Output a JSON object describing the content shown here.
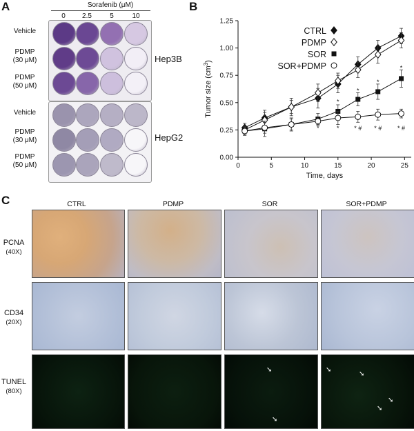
{
  "panelA": {
    "letter": "A",
    "drug_label": "Sorafenib (μM)",
    "doses": [
      "0",
      "2.5",
      "5",
      "10"
    ],
    "hep3b": {
      "cell_line": "Hep3B",
      "rows": [
        {
          "line1": "Vehicle",
          "line2": ""
        },
        {
          "line1": "PDMP",
          "line2": "(30 μM)"
        },
        {
          "line1": "PDMP",
          "line2": "(50 μM)"
        }
      ],
      "well_colors": [
        [
          "#5c3a86",
          "#6a4793",
          "#9370b2",
          "#d6c8e2"
        ],
        [
          "#603c88",
          "#6d4a95",
          "#d0c2df",
          "#f2eef6"
        ],
        [
          "#6c4994",
          "#8766aa",
          "#cdbfdd",
          "#f3f0f7"
        ]
      ]
    },
    "hepg2": {
      "cell_line": "HepG2",
      "rows": [
        {
          "line1": "Vehicle",
          "line2": ""
        },
        {
          "line1": "PDMP",
          "line2": "(30 μM)"
        },
        {
          "line1": "PDMP",
          "line2": "(50 μM)"
        }
      ],
      "well_colors": [
        [
          "#9a93ad",
          "#aca6bd",
          "#b5afc4",
          "#bcb7c9"
        ],
        [
          "#8f88a4",
          "#a49eb7",
          "#b0aac2",
          "#f7f6f9"
        ],
        [
          "#9c96b0",
          "#aaa4bb",
          "#bfbacb",
          "#f7f6f9"
        ]
      ]
    }
  },
  "panelB": {
    "letter": "B",
    "chart_data": {
      "type": "line",
      "xlabel": "Time, days",
      "ylabel": "Tumor size (cm",
      "ylabel_sup": "3",
      "ylabel_close": ")",
      "xlim": [
        0,
        26
      ],
      "ylim": [
        0,
        1.25
      ],
      "xticks": [
        0,
        5,
        10,
        15,
        20,
        25
      ],
      "yticks": [
        0.0,
        0.25,
        0.5,
        0.75,
        1.0,
        1.25
      ],
      "ytick_labels": [
        "0.00",
        "0.25",
        "0.50",
        "0.75",
        "1.00",
        "1.25"
      ],
      "x": [
        1,
        4,
        8,
        12,
        15,
        18,
        21,
        24.5
      ],
      "series": [
        {
          "name": "CTRL",
          "marker": "diamond-filled",
          "values": [
            0.27,
            0.36,
            0.46,
            0.54,
            0.67,
            0.85,
            1.0,
            1.11
          ],
          "errors": [
            0.04,
            0.07,
            0.08,
            0.09,
            0.08,
            0.07,
            0.07,
            0.07
          ]
        },
        {
          "name": "PDMP",
          "marker": "diamond-open",
          "values": [
            0.25,
            0.34,
            0.46,
            0.59,
            0.7,
            0.8,
            0.94,
            1.07
          ],
          "errors": [
            0.04,
            0.07,
            0.06,
            0.08,
            0.07,
            0.07,
            0.08,
            0.07
          ]
        },
        {
          "name": "SOR",
          "marker": "square-filled",
          "values": [
            0.24,
            0.26,
            0.3,
            0.35,
            0.42,
            0.53,
            0.6,
            0.72
          ],
          "errors": [
            0.04,
            0.07,
            0.05,
            0.05,
            0.06,
            0.06,
            0.07,
            0.08
          ]
        },
        {
          "name": "SOR+PDMP",
          "marker": "circle-open",
          "values": [
            0.24,
            0.27,
            0.3,
            0.33,
            0.36,
            0.37,
            0.39,
            0.4
          ],
          "errors": [
            0.03,
            0.05,
            0.06,
            0.04,
            0.06,
            0.05,
            0.05,
            0.04
          ]
        }
      ],
      "annotations": [
        {
          "x": 12,
          "y": 0.27,
          "text": "*"
        },
        {
          "x": 15,
          "y": 0.27,
          "text": "*"
        },
        {
          "x": 18,
          "y": 0.27,
          "text": "* #"
        },
        {
          "x": 21,
          "y": 0.27,
          "text": "* #"
        },
        {
          "x": 24.5,
          "y": 0.27,
          "text": "* #"
        },
        {
          "x": 15,
          "y": 0.515,
          "text": "*"
        },
        {
          "x": 18,
          "y": 0.615,
          "text": "*"
        },
        {
          "x": 21,
          "y": 0.695,
          "text": "*"
        },
        {
          "x": 24.5,
          "y": 0.825,
          "text": "*"
        }
      ],
      "legend_position": "top-left",
      "grid": false
    }
  },
  "panelC": {
    "letter": "C",
    "columns": [
      "CTRL",
      "PDMP",
      "SOR",
      "SOR+PDMP"
    ],
    "rows": [
      {
        "stain": "PCNA",
        "mag": "(40X)"
      },
      {
        "stain": "CD34",
        "mag": "(20X)"
      },
      {
        "stain": "TUNEL",
        "mag": "(80X)"
      }
    ],
    "tile_colors": {
      "pcna": [
        "#d4a877",
        "#cfb8a0",
        "#c9c3c7",
        "#c8c6d2"
      ],
      "cd34": [
        "#b4c1d7",
        "#c1cbdc",
        "#bcc5d6",
        "#b8c4da"
      ],
      "tunel": [
        "#07140a",
        "#08150a",
        "#061109",
        "#071309"
      ]
    }
  }
}
